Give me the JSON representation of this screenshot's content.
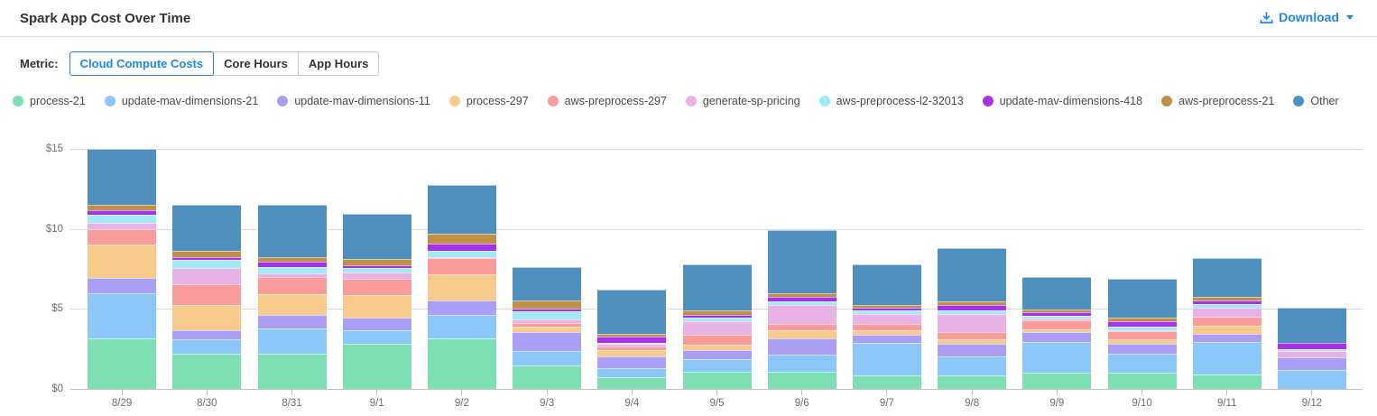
{
  "header": {
    "title": "Spark App Cost Over Time",
    "download_label": "Download",
    "download_icon": "download-tray-arrow",
    "caret_icon": "caret-down"
  },
  "toolbar": {
    "metric_label": "Metric:",
    "options": [
      {
        "label": "Cloud Compute Costs",
        "selected": true
      },
      {
        "label": "Core Hours",
        "selected": false
      },
      {
        "label": "App Hours",
        "selected": false
      }
    ]
  },
  "colors": {
    "accent": "#1E87E8",
    "grid": "#DADADA",
    "axis_line": "#C2C2C2",
    "text_primary": "#333333",
    "text_secondary": "#6E6E6E",
    "legend_text": "#4A4A4A"
  },
  "chart_data": {
    "type": "bar",
    "stacked": true,
    "title": "Spark App Cost Over Time",
    "xlabel": "",
    "ylabel": "",
    "ytick_prefix": "$",
    "yticks": [
      0,
      5,
      10,
      15
    ],
    "ylim": [
      0,
      15
    ],
    "grid": true,
    "legend_position": "top",
    "categories": [
      "8/29",
      "8/30",
      "8/31",
      "9/1",
      "9/2",
      "9/3",
      "9/4",
      "9/5",
      "9/6",
      "9/7",
      "9/8",
      "9/9",
      "9/10",
      "9/11",
      "9/12"
    ],
    "series": [
      {
        "name": "process-21",
        "color": "#7FDFB4",
        "values": [
          3.15,
          2.2,
          2.2,
          2.8,
          3.15,
          1.45,
          0.75,
          1.05,
          1.05,
          0.85,
          0.85,
          1.0,
          1.0,
          0.9,
          0
        ]
      },
      {
        "name": "update-mav-dimensions-21",
        "color": "#8CC7FA",
        "values": [
          2.8,
          0.9,
          1.6,
          0.85,
          1.5,
          0.95,
          0.55,
          0.8,
          1.1,
          2.05,
          1.2,
          1.95,
          1.2,
          2.05,
          1.2
        ]
      },
      {
        "name": "update-mav-dimensions-11",
        "color": "#AB9EF5",
        "values": [
          1.0,
          0.55,
          0.85,
          0.8,
          0.85,
          1.15,
          0.75,
          0.6,
          1.0,
          0.5,
          0.75,
          0.6,
          0.6,
          0.5,
          0.8
        ]
      },
      {
        "name": "process-297",
        "color": "#F8CB8C",
        "values": [
          2.05,
          1.6,
          1.25,
          1.4,
          1.65,
          0.35,
          0.35,
          0.3,
          0.5,
          0.25,
          0.3,
          0.2,
          0.3,
          0.5,
          0
        ]
      },
      {
        "name": "aws-preprocess-297",
        "color": "#FB9C9C",
        "values": [
          1.0,
          1.3,
          1.1,
          1.05,
          1.05,
          0.25,
          0.25,
          0.65,
          0.4,
          0.4,
          0.45,
          0.55,
          0.5,
          0.55,
          0
        ]
      },
      {
        "name": "generate-sp-pricing",
        "color": "#E9B2E7",
        "values": [
          0.35,
          1.0,
          0.2,
          0.35,
          0.05,
          0.2,
          0.15,
          0.85,
          1.2,
          0.65,
          1.15,
          0.1,
          0.05,
          0.55,
          0.35
        ]
      },
      {
        "name": "aws-preprocess-l2-32013",
        "color": "#9FE9F8",
        "values": [
          0.55,
          0.5,
          0.4,
          0.3,
          0.35,
          0.5,
          0.05,
          0.2,
          0.2,
          0.2,
          0.2,
          0.2,
          0.25,
          0.25,
          0.15
        ]
      },
      {
        "name": "update-mav-dimensions-418",
        "color": "#A733E8",
        "values": [
          0.25,
          0.2,
          0.35,
          0.2,
          0.5,
          0.2,
          0.4,
          0.2,
          0.3,
          0.15,
          0.35,
          0.2,
          0.35,
          0.2,
          0.4
        ]
      },
      {
        "name": "aws-preprocess-21",
        "color": "#BD9046",
        "values": [
          0.35,
          0.4,
          0.3,
          0.35,
          0.6,
          0.5,
          0.2,
          0.25,
          0.25,
          0.2,
          0.25,
          0.2,
          0.2,
          0.25,
          0
        ]
      },
      {
        "name": "Other",
        "color": "#4E8FBE",
        "values": [
          3.5,
          2.85,
          3.25,
          2.85,
          3.05,
          2.1,
          2.75,
          2.9,
          3.95,
          2.55,
          3.3,
          2.0,
          2.45,
          2.45,
          2.2
        ]
      }
    ]
  }
}
